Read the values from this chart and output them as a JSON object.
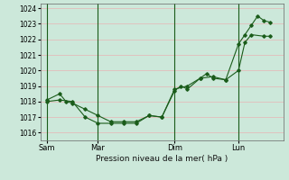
{
  "background_color": "#cce8da",
  "grid_color": "#e8b4b4",
  "line_color": "#1a5c1a",
  "xlabel": "Pression niveau de la mer( hPa )",
  "ylim": [
    1015.5,
    1024.3
  ],
  "yticks": [
    1016,
    1017,
    1018,
    1019,
    1020,
    1021,
    1022,
    1023,
    1024
  ],
  "xtick_labels": [
    "Sam",
    "Mar",
    "Dim",
    "Lun"
  ],
  "xtick_positions": [
    0.5,
    4.5,
    10.5,
    15.5
  ],
  "vlines": [
    0.5,
    4.5,
    10.5,
    15.5
  ],
  "xlim": [
    0,
    19
  ],
  "series1_x": [
    0.5,
    1.5,
    2.0,
    2.5,
    3.5,
    4.5,
    5.5,
    6.5,
    7.5,
    8.5,
    9.5,
    10.5,
    11.0,
    11.5,
    12.5,
    13.0,
    13.5,
    14.5,
    15.5,
    16.0,
    16.5,
    17.5,
    18.0
  ],
  "series1_y": [
    1018.1,
    1018.5,
    1018.0,
    1017.9,
    1017.5,
    1017.1,
    1016.7,
    1016.7,
    1016.7,
    1017.1,
    1017.0,
    1018.7,
    1019.0,
    1018.8,
    1019.5,
    1019.8,
    1019.5,
    1019.4,
    1020.0,
    1021.8,
    1022.3,
    1022.2,
    1022.2
  ],
  "series2_x": [
    0.5,
    1.5,
    2.5,
    3.5,
    4.5,
    5.5,
    6.5,
    7.5,
    8.5,
    9.5,
    10.5,
    11.5,
    12.5,
    13.5,
    14.5,
    15.5,
    16.0,
    16.5,
    17.0,
    17.5,
    18.0
  ],
  "series2_y": [
    1018.0,
    1018.1,
    1018.0,
    1017.0,
    1016.6,
    1016.6,
    1016.6,
    1016.6,
    1017.1,
    1017.0,
    1018.8,
    1019.0,
    1019.5,
    1019.6,
    1019.4,
    1021.7,
    1022.3,
    1022.9,
    1023.5,
    1023.2,
    1023.1
  ],
  "figsize": [
    3.2,
    2.0
  ],
  "dpi": 100
}
